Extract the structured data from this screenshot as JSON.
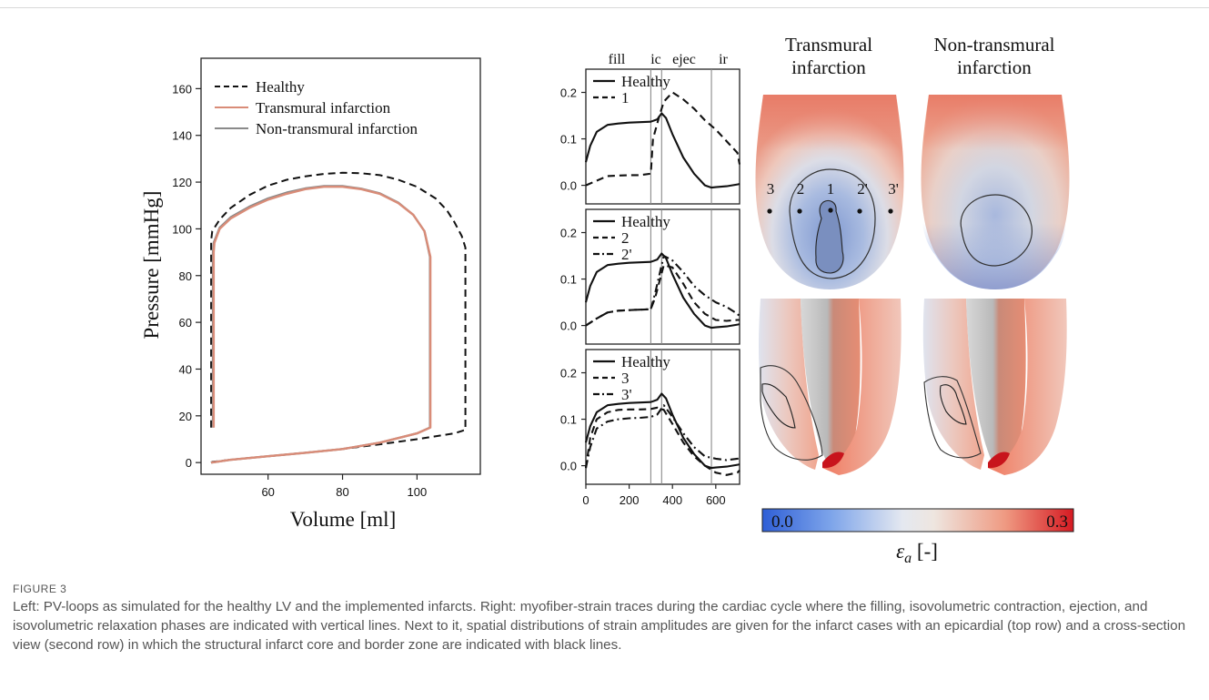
{
  "figure_label": "FIGURE 3",
  "caption": "Left: PV-loops as simulated for the healthy LV and the implemented infarcts. Right: myofiber-strain traces during the cardiac cycle where the filling, isovolumetric contraction, ejection, and isovolumetric relaxation phases are indicated with vertical lines. Next to it, spatial distributions of strain amplitudes are given for the infarct cases with an epicardial (top row) and a cross-section view (second row) in which the structural infarct core and border zone are indicated with black lines.",
  "colors": {
    "healthy": "#111111",
    "transmural": "#d98c78",
    "non_transmural": "#8a8a8a",
    "cmap_low": "#2f5fd6",
    "cmap_mid": "#ececec",
    "cmap_high": "#d61a22"
  },
  "chart_data": [
    {
      "type": "line",
      "xlabel": "Volume [ml]",
      "ylabel": "Pressure [mmHg]",
      "xlim": [
        42,
        117
      ],
      "ylim": [
        -5,
        173
      ],
      "xticks": [
        60,
        80,
        100
      ],
      "yticks": [
        0,
        20,
        40,
        60,
        80,
        100,
        120,
        140,
        160
      ],
      "legend_position": "top-left",
      "series": [
        {
          "name": "Healthy",
          "style": "dashed",
          "color": "#111111",
          "x": [
            44.7,
            44.7,
            45,
            47,
            50,
            55,
            60,
            65,
            70,
            75,
            80,
            85,
            90,
            95,
            100,
            105,
            108,
            110,
            112,
            113,
            113,
            110,
            100,
            90,
            80,
            70,
            60,
            50,
            45,
            44.7
          ],
          "y": [
            15,
            95,
            99,
            104,
            109,
            114.5,
            118.5,
            121,
            122.5,
            123.5,
            124,
            123.8,
            123,
            121,
            118,
            113,
            108,
            103,
            97,
            92,
            14,
            12.5,
            10,
            7.8,
            5.8,
            4.2,
            2.7,
            1.2,
            0.3,
            0
          ]
        },
        {
          "name": "Transmural infarction",
          "style": "solid",
          "color": "#d98c78",
          "x": [
            45.4,
            45.4,
            45.6,
            47,
            50,
            55,
            60,
            65,
            70,
            75,
            80,
            85,
            90,
            95,
            99,
            102,
            103.6,
            103.6,
            100,
            90,
            80,
            70,
            60,
            50,
            44.7
          ],
          "y": [
            15,
            90,
            94,
            100,
            104.5,
            109,
            112.5,
            115,
            117,
            118,
            118,
            117,
            115,
            111,
            106,
            99,
            88,
            15,
            12.5,
            8.5,
            5.8,
            4.2,
            2.7,
            1.2,
            0
          ]
        },
        {
          "name": "Non-transmural infarction",
          "style": "solid",
          "color": "#8a8a8a",
          "x": [
            45.2,
            45.2,
            45.4,
            47,
            50,
            55,
            60,
            65,
            70,
            75,
            80,
            85,
            90,
            95,
            99,
            102,
            103.5,
            103.5,
            100,
            90,
            80,
            70,
            60,
            50,
            44.7
          ],
          "y": [
            15,
            90,
            94,
            100.5,
            105,
            109.5,
            113,
            115.5,
            117.3,
            118.3,
            118.3,
            117.2,
            115.2,
            111.2,
            106,
            99,
            88,
            15,
            12.5,
            8.5,
            5.8,
            4.2,
            2.7,
            1.2,
            0
          ]
        }
      ]
    },
    {
      "type": "line",
      "phase_labels": [
        "fill",
        "ic",
        "ejec",
        "ir"
      ],
      "phase_lines_x": [
        300,
        350,
        580
      ],
      "xlim": [
        0,
        710
      ],
      "xticks": [
        0,
        200,
        400,
        600
      ],
      "ylim": [
        -0.04,
        0.25
      ],
      "yticks": [
        "0.0",
        "0.1",
        "0.2"
      ],
      "panels": [
        {
          "legend": [
            "Healthy",
            "1"
          ],
          "series": [
            {
              "name": "Healthy",
              "style": "solid",
              "x": [
                0,
                20,
                50,
                100,
                150,
                200,
                250,
                300,
                330,
                350,
                370,
                400,
                450,
                500,
                550,
                580,
                600,
                650,
                700,
                710
              ],
              "y": [
                0.05,
                0.085,
                0.115,
                0.13,
                0.133,
                0.135,
                0.136,
                0.137,
                0.142,
                0.155,
                0.145,
                0.11,
                0.06,
                0.025,
                0.0,
                -0.005,
                -0.004,
                -0.002,
                0.002,
                0.003
              ]
            },
            {
              "name": "1",
              "style": "dashed",
              "x": [
                0,
                50,
                100,
                200,
                250,
                300,
                310,
                340,
                360,
                400,
                450,
                500,
                550,
                600,
                650,
                700,
                710
              ],
              "y": [
                0.0,
                0.01,
                0.02,
                0.022,
                0.022,
                0.025,
                0.1,
                0.15,
                0.18,
                0.2,
                0.185,
                0.165,
                0.14,
                0.12,
                0.095,
                0.07,
                0.045
              ]
            }
          ]
        },
        {
          "legend": [
            "Healthy",
            "2",
            "2'"
          ],
          "series": [
            {
              "name": "Healthy",
              "style": "solid",
              "x": [
                0,
                20,
                50,
                100,
                150,
                200,
                250,
                300,
                330,
                350,
                370,
                400,
                450,
                500,
                550,
                580,
                600,
                650,
                700,
                710
              ],
              "y": [
                0.05,
                0.085,
                0.115,
                0.13,
                0.133,
                0.135,
                0.136,
                0.137,
                0.142,
                0.155,
                0.145,
                0.11,
                0.06,
                0.025,
                0.0,
                -0.005,
                -0.004,
                -0.002,
                0.002,
                0.003
              ]
            },
            {
              "name": "2",
              "style": "dashed",
              "x": [
                0,
                50,
                100,
                150,
                200,
                250,
                300,
                320,
                360,
                400,
                450,
                500,
                550,
                600,
                650,
                700,
                710
              ],
              "y": [
                0.0,
                0.015,
                0.028,
                0.032,
                0.033,
                0.034,
                0.035,
                0.06,
                0.13,
                0.125,
                0.09,
                0.05,
                0.025,
                0.012,
                0.01,
                0.012,
                0.012
              ]
            },
            {
              "name": "2'",
              "style": "dashdot",
              "x": [
                0,
                50,
                100,
                150,
                200,
                250,
                300,
                320,
                360,
                400,
                450,
                500,
                550,
                600,
                650,
                700,
                710
              ],
              "y": [
                0.0,
                0.015,
                0.028,
                0.032,
                0.033,
                0.034,
                0.035,
                0.07,
                0.15,
                0.14,
                0.115,
                0.085,
                0.065,
                0.05,
                0.04,
                0.025,
                0.02
              ]
            }
          ]
        },
        {
          "legend": [
            "Healthy",
            "3",
            "3'"
          ],
          "series": [
            {
              "name": "Healthy",
              "style": "solid",
              "x": [
                0,
                20,
                50,
                100,
                150,
                200,
                250,
                300,
                330,
                350,
                370,
                400,
                450,
                500,
                550,
                580,
                600,
                650,
                700,
                710
              ],
              "y": [
                0.05,
                0.085,
                0.115,
                0.13,
                0.133,
                0.135,
                0.136,
                0.137,
                0.142,
                0.155,
                0.145,
                0.11,
                0.06,
                0.025,
                0.0,
                -0.005,
                -0.004,
                -0.002,
                0.002,
                0.003
              ]
            },
            {
              "name": "3",
              "style": "dashed",
              "x": [
                0,
                20,
                50,
                100,
                150,
                200,
                250,
                300,
                330,
                360,
                400,
                450,
                500,
                550,
                600,
                650,
                700,
                710
              ],
              "y": [
                -0.005,
                0.06,
                0.1,
                0.115,
                0.12,
                0.121,
                0.121,
                0.122,
                0.125,
                0.12,
                0.09,
                0.05,
                0.02,
                0.0,
                -0.015,
                -0.02,
                -0.015,
                -0.01
              ]
            },
            {
              "name": "3'",
              "style": "dashdot",
              "x": [
                0,
                20,
                50,
                100,
                150,
                200,
                250,
                300,
                330,
                360,
                400,
                450,
                500,
                550,
                600,
                650,
                700,
                710
              ],
              "y": [
                -0.005,
                0.04,
                0.08,
                0.095,
                0.1,
                0.102,
                0.103,
                0.105,
                0.11,
                0.13,
                0.105,
                0.07,
                0.04,
                0.02,
                0.015,
                0.012,
                0.015,
                0.015
              ]
            }
          ]
        }
      ]
    },
    {
      "type": "heatmap",
      "columns": [
        "Transmural infarction",
        "Non-transmural infarction"
      ],
      "markers": [
        "3",
        "2",
        "1",
        "2'",
        "3'"
      ],
      "colorbar": {
        "min_label": "0.0",
        "max_label": "0.3",
        "label_symbol": "ε",
        "label_subscript": "a",
        "label_suffix": " [-]"
      }
    }
  ]
}
